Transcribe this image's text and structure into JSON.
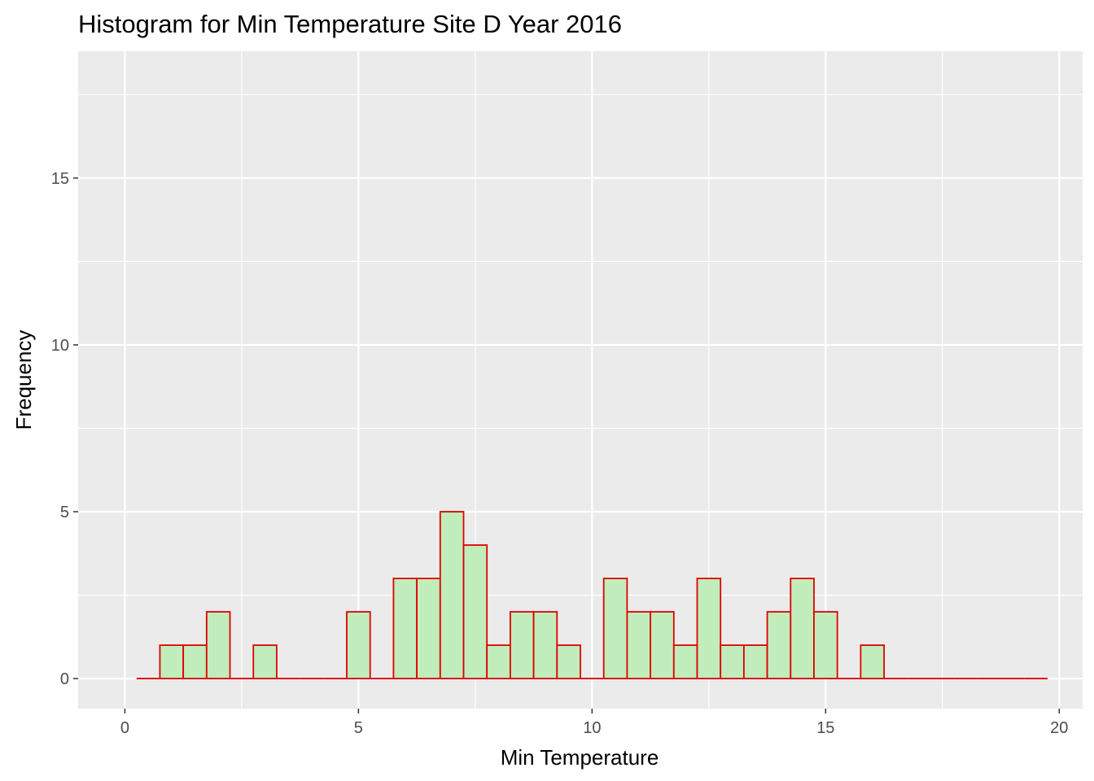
{
  "chart_data": {
    "type": "bar",
    "title": "Histogram for Min Temperature Site D Year 2016",
    "xlabel": "Min Temperature",
    "ylabel": "Frequency",
    "bin_width": 0.5,
    "bin_centers": [
      0.5,
      1.0,
      1.5,
      2.0,
      2.5,
      3.0,
      3.5,
      4.0,
      4.5,
      5.0,
      5.5,
      6.0,
      6.5,
      7.0,
      7.5,
      8.0,
      8.5,
      9.0,
      9.5,
      10.0,
      10.5,
      11.0,
      11.5,
      12.0,
      12.5,
      13.0,
      13.5,
      14.0,
      14.5,
      15.0,
      15.5,
      16.0,
      16.5,
      17.0,
      17.5,
      18.0,
      18.5,
      19.0,
      19.5
    ],
    "values": [
      0,
      1,
      1,
      2,
      0,
      1,
      0,
      0,
      0,
      2,
      0,
      3,
      3,
      5,
      4,
      1,
      2,
      2,
      1,
      0,
      3,
      2,
      2,
      1,
      3,
      1,
      1,
      2,
      3,
      2,
      0,
      1,
      0,
      0,
      0,
      0,
      0,
      0,
      0
    ],
    "xlim": [
      -1,
      20.5
    ],
    "ylim": [
      -0.9,
      18.8
    ],
    "x_ticks": [
      0,
      5,
      10,
      15,
      20
    ],
    "y_ticks": [
      0,
      5,
      10,
      15
    ],
    "x_tick_labels": [
      "0",
      "5",
      "10",
      "15",
      "20"
    ],
    "y_tick_labels": [
      "0",
      "5",
      "10",
      "15"
    ],
    "grid": true,
    "colors": {
      "panel_background": "#ebebeb",
      "grid_major": "#ffffff",
      "bar_fill": "#c0edbb",
      "bar_outline": "#e00000",
      "axis_text": "#4d4d4d",
      "title_text": "#000000"
    }
  }
}
